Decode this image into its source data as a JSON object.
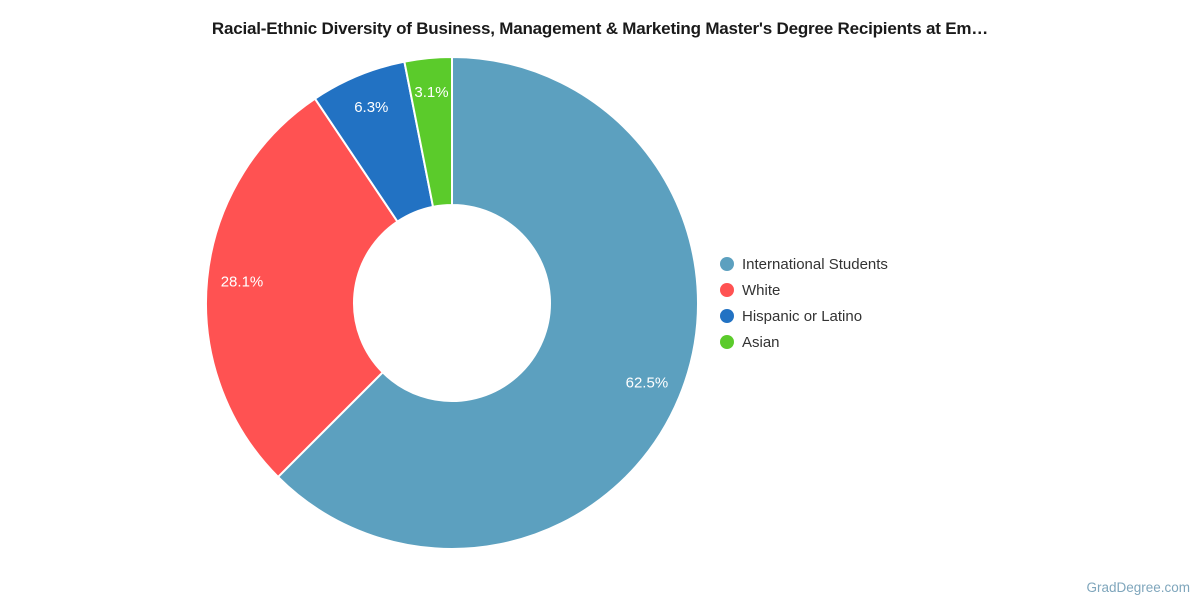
{
  "title": "Racial-Ethnic Diversity of Business, Management & Marketing Master's Degree Recipients at Em…",
  "watermark": "GradDegree.com",
  "chart_data": {
    "type": "pie",
    "subtype": "donut",
    "title": "Racial-Ethnic Diversity of Business, Management & Marketing Master's Degree Recipients at Em…",
    "labels": [
      "International Students",
      "White",
      "Hispanic or Latino",
      "Asian"
    ],
    "values": [
      62.5,
      28.1,
      6.3,
      3.1
    ],
    "display_labels": [
      "62.5%",
      "28.1%",
      "6.3%",
      "3.1%"
    ],
    "colors": [
      "#5CA0BF",
      "#FF5252",
      "#2272C3",
      "#5BCB2B"
    ],
    "label_color": "#FFFFFF",
    "legend_position": "right",
    "start_angle_deg": 0,
    "direction": "clockwise",
    "grid": false
  }
}
